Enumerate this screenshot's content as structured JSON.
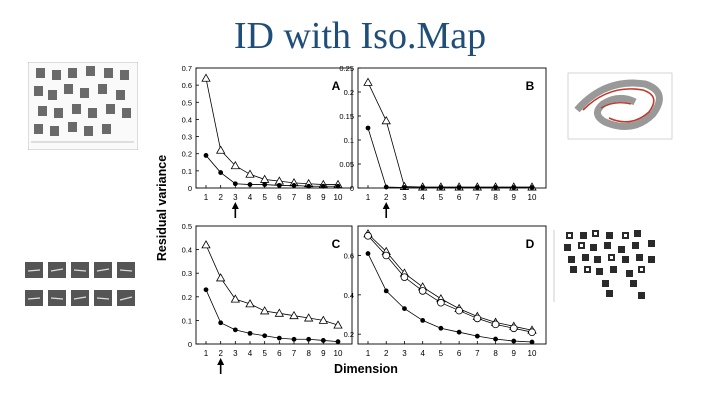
{
  "slide": {
    "title": "ID with Iso.Map",
    "ylabel": "Residual variance",
    "xlabel": "Dimension"
  },
  "colors": {
    "title": "#1f4e79",
    "line": "#000000"
  },
  "chart_data": [
    {
      "panel": "A",
      "type": "line",
      "x": [
        1,
        2,
        3,
        4,
        5,
        6,
        7,
        8,
        9,
        10
      ],
      "ylim": [
        0,
        0.7
      ],
      "yticks": [
        "0",
        "0.1",
        "0.2",
        "0.3",
        "0.4",
        "0.5",
        "0.6",
        "0.7"
      ],
      "xticks": [
        "1",
        "2",
        "3",
        "4",
        "5",
        "6",
        "7",
        "8",
        "9",
        "10"
      ],
      "arrow_at": 3,
      "series": [
        {
          "name": "triangle",
          "marker": "triangle",
          "values": [
            0.64,
            0.22,
            0.13,
            0.08,
            0.05,
            0.04,
            0.03,
            0.025,
            0.02,
            0.02
          ]
        },
        {
          "name": "dot",
          "marker": "dot",
          "values": [
            0.19,
            0.09,
            0.025,
            0.02,
            0.02,
            0.015,
            0.015,
            0.01,
            0.01,
            0.01
          ]
        }
      ]
    },
    {
      "panel": "B",
      "type": "line",
      "x": [
        1,
        2,
        3,
        4,
        5,
        6,
        7,
        8,
        9,
        10
      ],
      "ylim": [
        0,
        0.25
      ],
      "yticks": [
        "0",
        "0.05",
        "0.1",
        "0.15",
        "0.2",
        "0.25"
      ],
      "xticks": [
        "1",
        "2",
        "3",
        "4",
        "5",
        "6",
        "7",
        "8",
        "9",
        "10"
      ],
      "arrow_at": 2,
      "series": [
        {
          "name": "triangle",
          "marker": "triangle",
          "values": [
            0.22,
            0.14,
            0.003,
            0.002,
            0.002,
            0.002,
            0.002,
            0.002,
            0.002,
            0.002
          ]
        },
        {
          "name": "dot",
          "marker": "dot",
          "values": [
            0.125,
            0.002,
            0.001,
            0.001,
            0.001,
            0.001,
            0.001,
            0.001,
            0.001,
            0.001
          ]
        }
      ]
    },
    {
      "panel": "C",
      "type": "line",
      "x": [
        1,
        2,
        3,
        4,
        5,
        6,
        7,
        8,
        9,
        10
      ],
      "ylim": [
        0,
        0.5
      ],
      "yticks": [
        "0",
        "0.1",
        "0.2",
        "0.3",
        "0.4",
        "0.5"
      ],
      "xticks": [
        "1",
        "2",
        "3",
        "4",
        "5",
        "6",
        "7",
        "8",
        "9",
        "10"
      ],
      "arrow_at": 2,
      "series": [
        {
          "name": "triangle",
          "marker": "triangle",
          "values": [
            0.42,
            0.28,
            0.19,
            0.17,
            0.14,
            0.13,
            0.12,
            0.11,
            0.1,
            0.08
          ]
        },
        {
          "name": "dot",
          "marker": "dot",
          "values": [
            0.23,
            0.09,
            0.06,
            0.045,
            0.035,
            0.025,
            0.02,
            0.02,
            0.015,
            0.01
          ]
        }
      ]
    },
    {
      "panel": "D",
      "type": "line",
      "x": [
        1,
        2,
        3,
        4,
        5,
        6,
        7,
        8,
        9,
        10
      ],
      "ylim": [
        0.15,
        0.75
      ],
      "yticks": [
        "0.2",
        "0.4",
        "0.6"
      ],
      "ytick_values": [
        0.2,
        0.4,
        0.6
      ],
      "xticks": [
        "1",
        "2",
        "3",
        "4",
        "5",
        "6",
        "7",
        "8",
        "9",
        "10"
      ],
      "arrow_at": null,
      "series": [
        {
          "name": "triangle",
          "marker": "triangle",
          "values": [
            0.71,
            0.62,
            0.51,
            0.44,
            0.38,
            0.33,
            0.29,
            0.26,
            0.24,
            0.22
          ]
        },
        {
          "name": "circle",
          "marker": "circle",
          "values": [
            0.7,
            0.6,
            0.49,
            0.42,
            0.36,
            0.32,
            0.28,
            0.25,
            0.23,
            0.21
          ]
        },
        {
          "name": "dot",
          "marker": "dot",
          "values": [
            0.61,
            0.42,
            0.33,
            0.27,
            0.23,
            0.21,
            0.19,
            0.175,
            0.165,
            0.16
          ]
        }
      ]
    }
  ]
}
